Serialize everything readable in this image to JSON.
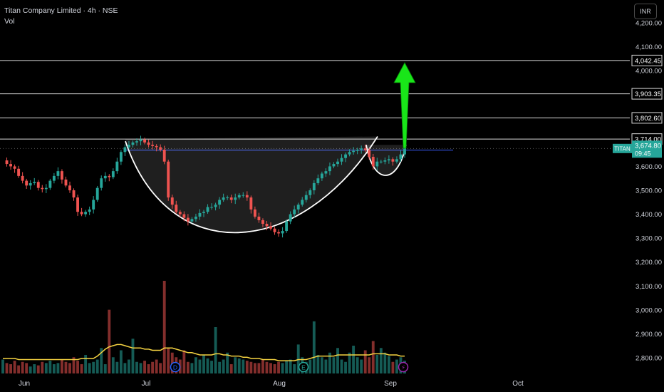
{
  "header": {
    "symbol_line": "Titan Company Limited · 4h · NSE",
    "indicator_label": "Vol"
  },
  "currency_button": "INR",
  "chart_data": {
    "type": "candlestick",
    "ylim": [
      2730,
      4240
    ],
    "yticks": [
      2800,
      2900,
      3000,
      3100,
      3200,
      3300,
      3400,
      3500,
      3600,
      3700,
      3800,
      3900,
      4000,
      4100,
      4200
    ],
    "ytick_labels": [
      "2,800.00",
      "2,900.00",
      "3,000.00",
      "3,100.00",
      "3,200.00",
      "3,300.00",
      "3,400.00",
      "3,500.00",
      "3,600.00",
      "",
      "",
      "",
      "4,000.00",
      "4,100.00",
      "4,200.00"
    ],
    "xtick_labels": [
      "Jun",
      "Jul",
      "Aug",
      "Sep",
      "Oct"
    ],
    "resistance_lines": [
      {
        "value": 4042.45,
        "label": "4,042.45"
      },
      {
        "value": 3903.35,
        "label": "3,903.35"
      },
      {
        "value": 3802.6,
        "label": "3,802.60"
      },
      {
        "value": 3714.0,
        "label": "3,714.00"
      }
    ],
    "last_price": {
      "value": 3674.8,
      "label": "3,674.80",
      "symbol": "TITAN",
      "countdown": "09:45"
    },
    "price_path": [
      3625,
      3610,
      3600,
      3590,
      3560,
      3540,
      3520,
      3530,
      3535,
      3510,
      3505,
      3510,
      3540,
      3560,
      3580,
      3545,
      3520,
      3500,
      3470,
      3410,
      3400,
      3410,
      3420,
      3460,
      3510,
      3550,
      3560,
      3555,
      3580,
      3620,
      3660,
      3680,
      3690,
      3700,
      3705,
      3712,
      3700,
      3690,
      3685,
      3680,
      3670,
      3620,
      3470,
      3440,
      3410,
      3400,
      3385,
      3370,
      3380,
      3390,
      3405,
      3410,
      3430,
      3430,
      3440,
      3460,
      3470,
      3470,
      3460,
      3470,
      3480,
      3480,
      3470,
      3420,
      3390,
      3375,
      3360,
      3350,
      3340,
      3325,
      3320,
      3330,
      3370,
      3400,
      3420,
      3440,
      3460,
      3480,
      3500,
      3530,
      3550,
      3570,
      3580,
      3600,
      3610,
      3620,
      3635,
      3650,
      3660,
      3665,
      3670,
      3675,
      3668,
      3640,
      3600,
      3620,
      3620,
      3625,
      3630,
      3620,
      3630,
      3650,
      3674.8
    ],
    "volume": [
      12,
      9,
      8,
      11,
      7,
      10,
      9,
      6,
      8,
      7,
      10,
      9,
      11,
      8,
      9,
      12,
      10,
      9,
      14,
      11,
      8,
      16,
      9,
      10,
      12,
      22,
      8,
      55,
      14,
      10,
      20,
      9,
      12,
      30,
      10,
      9,
      11,
      8,
      10,
      12,
      9,
      80,
      22,
      18,
      14,
      12,
      20,
      10,
      9,
      14,
      12,
      16,
      13,
      11,
      40,
      10,
      12,
      18,
      8,
      14,
      13,
      12,
      11,
      10,
      9,
      9,
      12,
      10,
      9,
      8,
      10,
      9,
      11,
      12,
      8,
      25,
      14,
      10,
      12,
      45,
      16,
      14,
      12,
      18,
      14,
      22,
      12,
      10,
      18,
      24,
      14,
      12,
      20,
      14,
      28,
      16,
      22,
      18,
      15,
      10,
      12,
      14,
      11
    ],
    "volume_ma": [
      13,
      13,
      13,
      13,
      12,
      12,
      12,
      12,
      12,
      12,
      12,
      12,
      12,
      12,
      12,
      12,
      12,
      12,
      12,
      12,
      13,
      13,
      13,
      13,
      15,
      18,
      21,
      23,
      24,
      25,
      25,
      24,
      23,
      22,
      22,
      22,
      21,
      21,
      20,
      20,
      20,
      22,
      22,
      22,
      21,
      20,
      19,
      18,
      18,
      17,
      16,
      16,
      16,
      16,
      17,
      17,
      16,
      16,
      15,
      15,
      15,
      14,
      14,
      13,
      13,
      13,
      12,
      12,
      12,
      12,
      11,
      11,
      11,
      11,
      11,
      12,
      12,
      12,
      13,
      14,
      15,
      15,
      15,
      15,
      15,
      16,
      16,
      16,
      16,
      16,
      16,
      16,
      16,
      16,
      17,
      17,
      17,
      17,
      16,
      16,
      16,
      15,
      15
    ],
    "events": [
      {
        "label": "D"
      },
      {
        "label": "E"
      },
      {
        "label": "⚡"
      }
    ]
  }
}
